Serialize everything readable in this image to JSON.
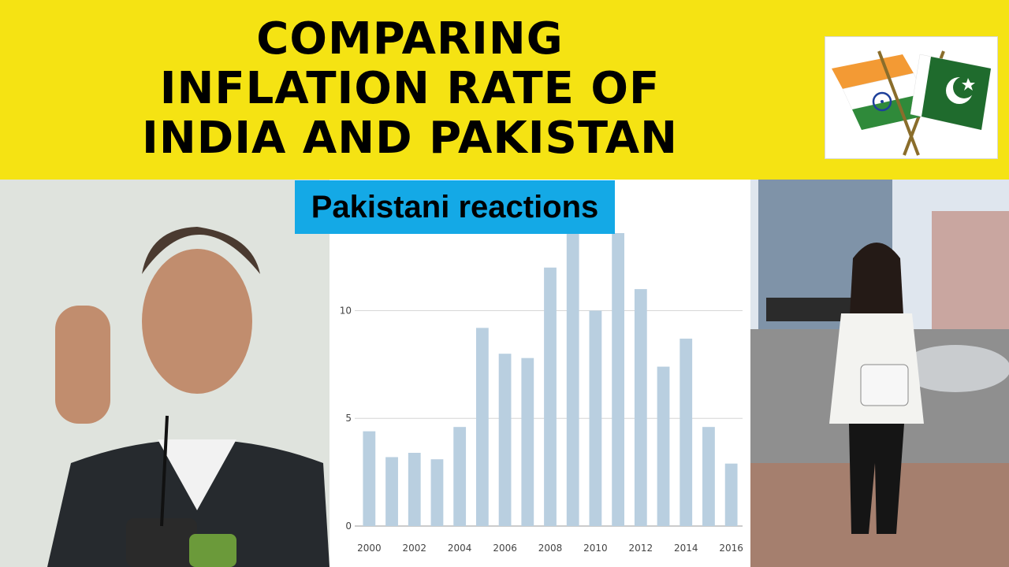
{
  "banner": {
    "title_lines": [
      "COMPARING",
      "INFLATION RATE OF",
      "INDIA AND PAKISTAN"
    ],
    "background_color": "#f5e313"
  },
  "flags": {
    "left_flag": "india-flag",
    "right_flag": "pakistan-flag"
  },
  "caption": {
    "text": "Pakistani reactions",
    "background_color": "#14a9e6"
  },
  "photos": {
    "left": "man-speaking-at-microphones",
    "right": "woman-on-city-street"
  },
  "chart_data": {
    "type": "bar",
    "categories": [
      "2000",
      "2001",
      "2002",
      "2003",
      "2004",
      "2005",
      "2006",
      "2007",
      "2008",
      "2009",
      "2010",
      "2011",
      "2012",
      "2013",
      "2014",
      "2015",
      "2016"
    ],
    "values": [
      4.4,
      3.2,
      3.4,
      3.1,
      4.6,
      9.2,
      8.0,
      7.8,
      12.0,
      13.6,
      10.0,
      13.6,
      11.0,
      7.4,
      8.7,
      4.6,
      2.9
    ],
    "x_tick_labels": [
      "2000",
      "2002",
      "2004",
      "2006",
      "2008",
      "2010",
      "2012",
      "2014",
      "2016"
    ],
    "y_ticks": [
      0,
      5,
      10
    ],
    "ylim": [
      0,
      13.6
    ],
    "grid": "horizontal",
    "bar_color": "#b9cfe0"
  }
}
